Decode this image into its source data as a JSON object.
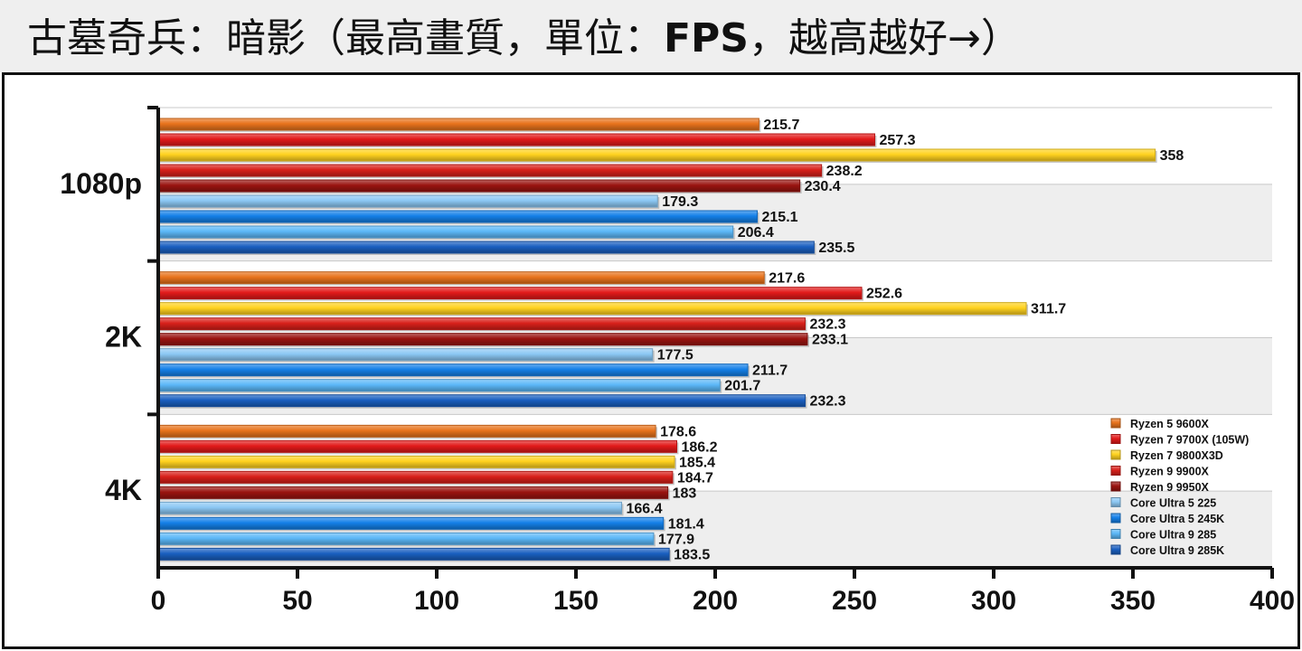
{
  "title": {
    "part1": "古墓奇兵：暗影（最高畫質，單位：",
    "part2": "FPS",
    "part3": "，越高越好→）"
  },
  "colors": {
    "Ryzen 5 9600X": "#e8731c",
    "Ryzen 7 9700X (105W)": "#e21a1a",
    "Ryzen 7 9800X3D": "#ffd21f",
    "Ryzen 9 9900X": "#d8201a",
    "Ryzen 9 9950X": "#9a1410",
    "Core Ultra 5 225": "#8cc8f4",
    "Core Ultra 5 245K": "#1480e8",
    "Core Ultra 9 285": "#5cb8f8",
    "Core Ultra 9 285K": "#1a5fc0"
  },
  "chart_data": {
    "type": "bar",
    "orientation": "horizontal",
    "categories": [
      "1080p",
      "2K",
      "4K"
    ],
    "series": [
      {
        "name": "Ryzen 5 9600X",
        "values": [
          215.7,
          217.6,
          178.6
        ]
      },
      {
        "name": "Ryzen 7 9700X (105W)",
        "values": [
          257.3,
          252.6,
          186.2
        ]
      },
      {
        "name": "Ryzen 7 9800X3D",
        "values": [
          358,
          311.7,
          185.4
        ]
      },
      {
        "name": "Ryzen 9 9900X",
        "values": [
          238.2,
          232.3,
          184.7
        ]
      },
      {
        "name": "Ryzen 9 9950X",
        "values": [
          230.4,
          233.1,
          183
        ]
      },
      {
        "name": "Core Ultra 5 225",
        "values": [
          179.3,
          177.5,
          166.4
        ]
      },
      {
        "name": "Core Ultra 5 245K",
        "values": [
          215.1,
          211.7,
          181.4
        ]
      },
      {
        "name": "Core Ultra 9 285",
        "values": [
          206.4,
          201.7,
          177.9
        ]
      },
      {
        "name": "Core Ultra 9 285K",
        "values": [
          235.5,
          232.3,
          183.5
        ]
      }
    ],
    "xlim": [
      0,
      400
    ],
    "xticks": [
      0,
      50,
      100,
      150,
      200,
      250,
      300,
      350,
      400
    ],
    "grid": true,
    "legend": "bottom-right"
  }
}
